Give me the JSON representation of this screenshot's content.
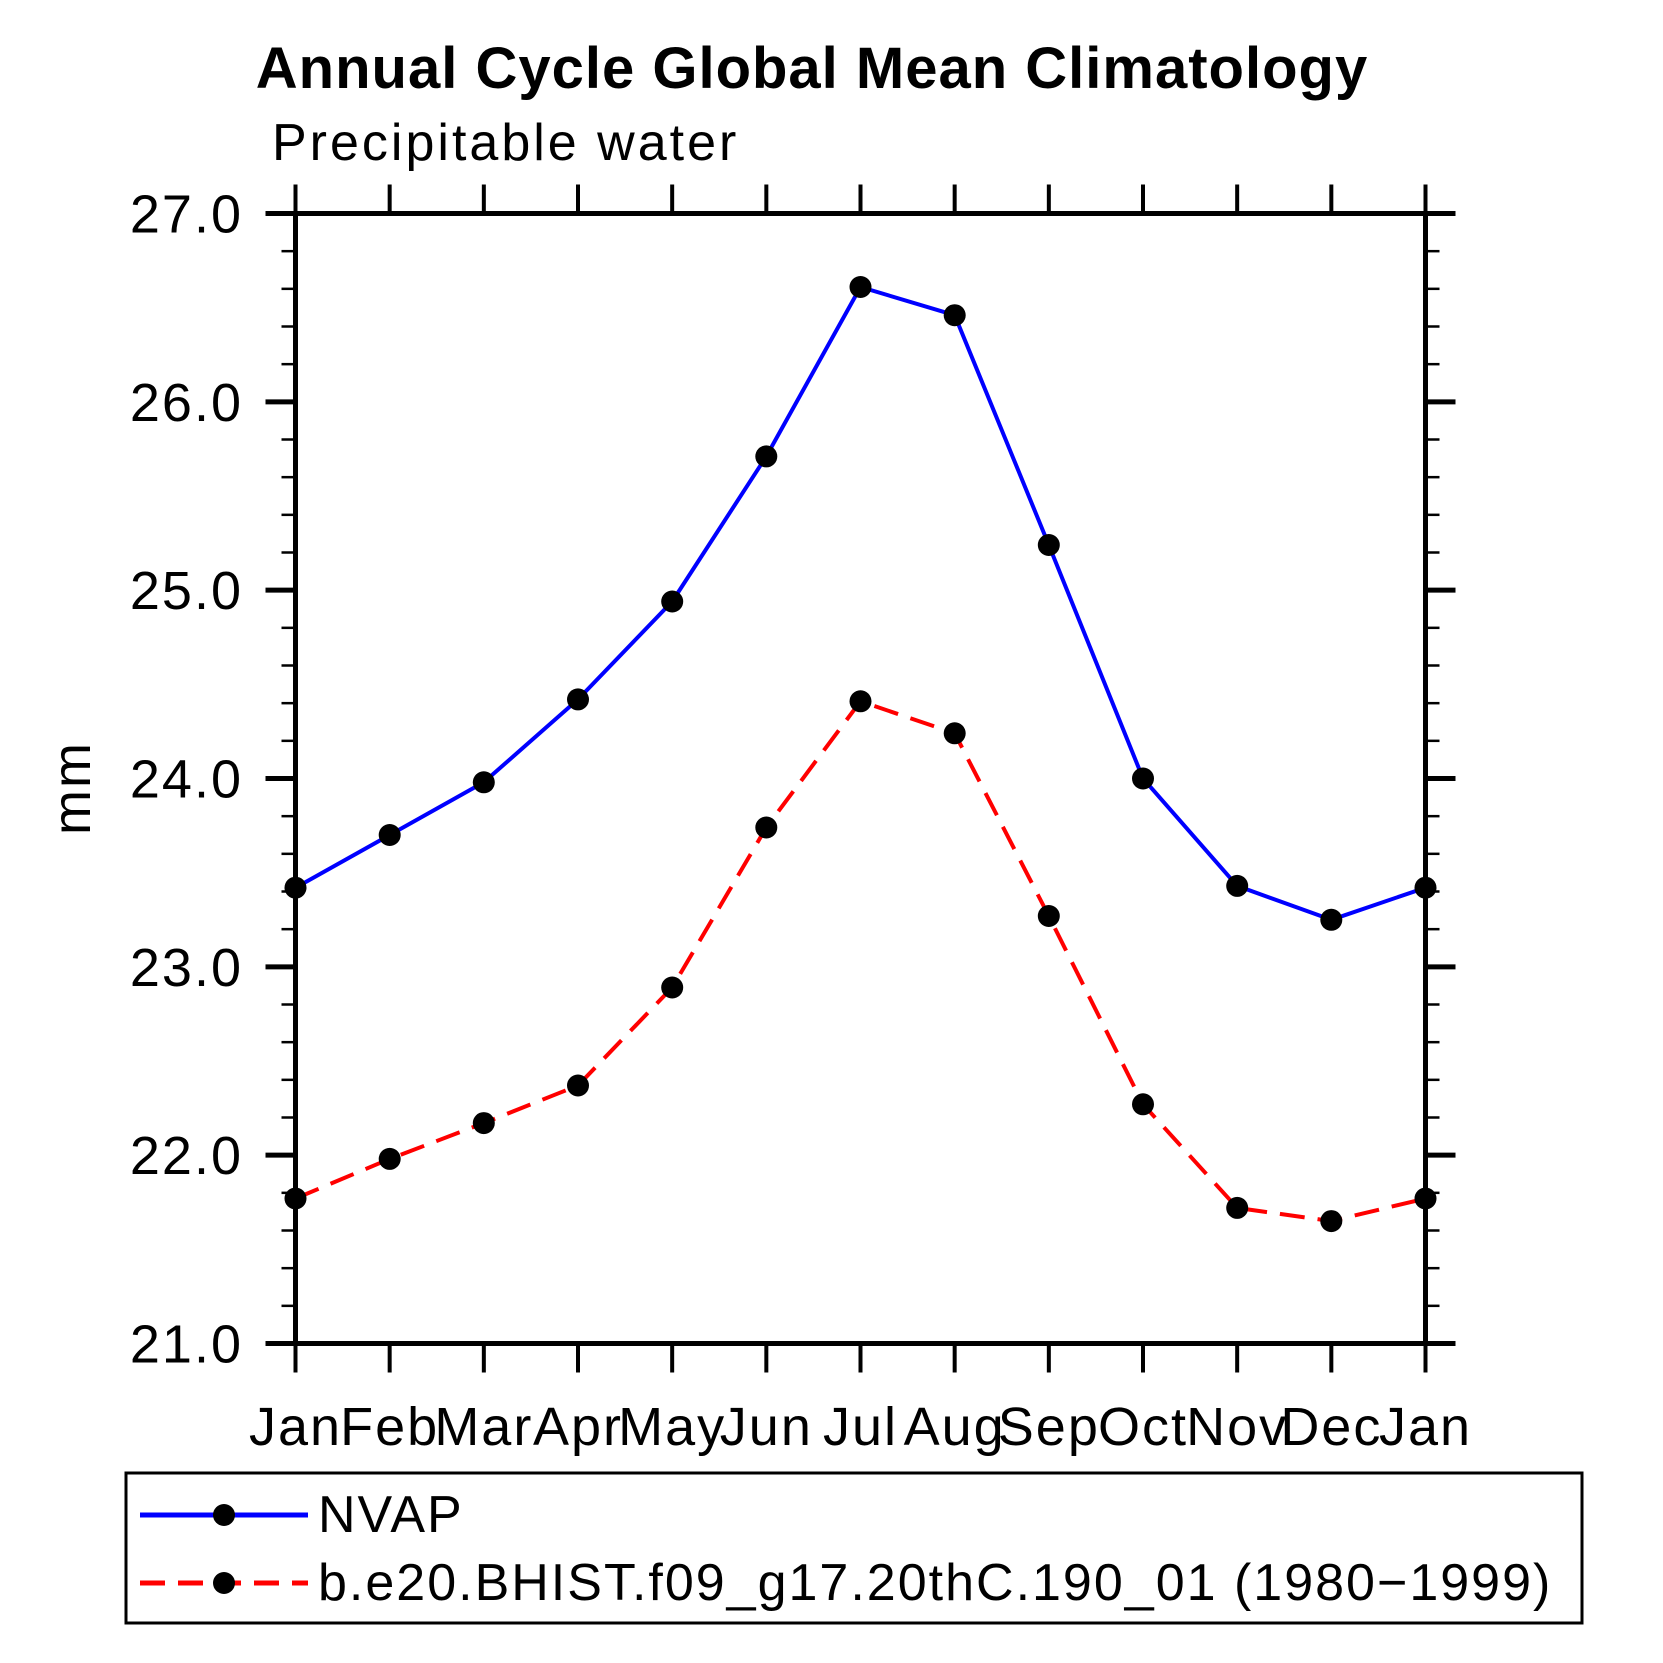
{
  "chart_data": {
    "type": "line",
    "title": "Annual Cycle Global Mean Climatology",
    "subtitle": "Precipitable water",
    "ylabel": "mm",
    "ylim": [
      21.0,
      27.0
    ],
    "ytick_interval": 1.0,
    "ytick_minor_interval": 0.2,
    "ytick_labels": [
      "21.0",
      "22.0",
      "23.0",
      "24.0",
      "25.0",
      "26.0",
      "27.0"
    ],
    "categories": [
      "Jan",
      "Feb",
      "Mar",
      "Apr",
      "May",
      "Jun",
      "Jul",
      "Aug",
      "Sep",
      "Oct",
      "Nov",
      "Dec",
      "Jan"
    ],
    "grid": false,
    "legend_position": "bottom",
    "series": [
      {
        "name": "NVAP",
        "color": "#0000ff",
        "line_style": "solid",
        "dash": "",
        "marker": "circle",
        "marker_color": "#000000",
        "values": [
          23.42,
          23.7,
          23.98,
          24.42,
          24.94,
          25.71,
          26.61,
          26.46,
          25.24,
          24.0,
          23.43,
          23.25,
          23.42
        ]
      },
      {
        "name": "b.e20.BHIST.f09_g17.20thC.190_01 (1980−1999)",
        "color": "#ff0000",
        "line_style": "dashed",
        "dash": "25 13",
        "marker": "circle",
        "marker_color": "#000000",
        "values": [
          21.77,
          21.98,
          22.17,
          22.37,
          22.89,
          23.74,
          24.41,
          24.24,
          23.27,
          22.27,
          21.72,
          21.65,
          21.77
        ]
      }
    ]
  }
}
